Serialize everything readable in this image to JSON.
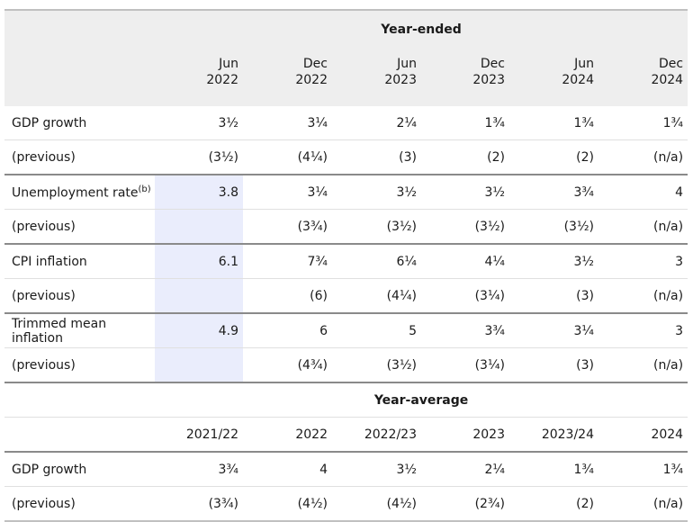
{
  "year_ended": {
    "title": "Year-ended",
    "periods": [
      {
        "month": "Jun",
        "year": "2022"
      },
      {
        "month": "Dec",
        "year": "2022"
      },
      {
        "month": "Jun",
        "year": "2023"
      },
      {
        "month": "Dec",
        "year": "2023"
      },
      {
        "month": "Jun",
        "year": "2024"
      },
      {
        "month": "Dec",
        "year": "2024"
      }
    ],
    "rows": [
      {
        "label": "GDP growth",
        "values": [
          "3½",
          "3¼",
          "2¼",
          "1¾",
          "1¾",
          "1¾"
        ]
      },
      {
        "label": "(previous)",
        "values": [
          "(3½)",
          "(4¼)",
          "(3)",
          "(2)",
          "(2)",
          "(n/a)"
        ]
      },
      {
        "label": "Unemployment rate",
        "sup": "(b)",
        "values": [
          "3.8",
          "3¼",
          "3½",
          "3½",
          "3¾",
          "4"
        ]
      },
      {
        "label": "(previous)",
        "values": [
          "",
          "(3¾)",
          "(3½)",
          "(3½)",
          "(3½)",
          "(n/a)"
        ]
      },
      {
        "label": "CPI inflation",
        "values": [
          "6.1",
          "7¾",
          "6¼",
          "4¼",
          "3½",
          "3"
        ]
      },
      {
        "label": "(previous)",
        "values": [
          "",
          "(6)",
          "(4¼)",
          "(3¼)",
          "(3)",
          "(n/a)"
        ]
      },
      {
        "label": "Trimmed mean inflation",
        "values": [
          "4.9",
          "6",
          "5",
          "3¾",
          "3¼",
          "3"
        ]
      },
      {
        "label": "(previous)",
        "values": [
          "",
          "(4¾)",
          "(3½)",
          "(3¼)",
          "(3)",
          "(n/a)"
        ]
      }
    ]
  },
  "year_average": {
    "title": "Year-average",
    "periods": [
      "2021/22",
      "2022",
      "2022/23",
      "2023",
      "2023/24",
      "2024"
    ],
    "rows": [
      {
        "label": "GDP growth",
        "values": [
          "3¾",
          "4",
          "3½",
          "2¼",
          "1¾",
          "1¾"
        ]
      },
      {
        "label": "(previous)",
        "values": [
          "(3¾)",
          "(4½)",
          "(4½)",
          "(2¾)",
          "(2)",
          "(n/a)"
        ]
      }
    ]
  },
  "colors": {
    "header_bg": "#eeeeee",
    "highlight": "#eaedfc",
    "rule": "#8a8a8a"
  }
}
